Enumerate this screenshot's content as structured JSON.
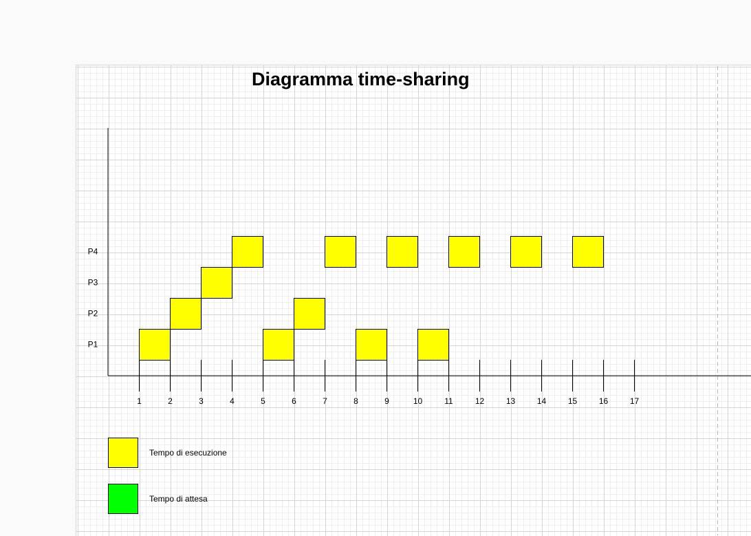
{
  "title": "Diagramma time-sharing",
  "processes": [
    "P1",
    "P2",
    "P3",
    "P4"
  ],
  "time_ticks": [
    "1",
    "2",
    "3",
    "4",
    "5",
    "6",
    "7",
    "8",
    "9",
    "10",
    "11",
    "12",
    "13",
    "14",
    "15",
    "16",
    "17"
  ],
  "execution_slots": [
    {
      "process": "P1",
      "start": 1,
      "end": 2
    },
    {
      "process": "P2",
      "start": 2,
      "end": 3
    },
    {
      "process": "P3",
      "start": 3,
      "end": 4
    },
    {
      "process": "P4",
      "start": 4,
      "end": 5
    },
    {
      "process": "P1",
      "start": 5,
      "end": 6
    },
    {
      "process": "P2",
      "start": 6,
      "end": 7
    },
    {
      "process": "P4",
      "start": 7,
      "end": 8
    },
    {
      "process": "P1",
      "start": 8,
      "end": 9
    },
    {
      "process": "P4",
      "start": 9,
      "end": 10
    },
    {
      "process": "P1",
      "start": 10,
      "end": 11
    },
    {
      "process": "P4",
      "start": 11,
      "end": 12
    },
    {
      "process": "P4",
      "start": 13,
      "end": 14
    },
    {
      "process": "P4",
      "start": 15,
      "end": 16
    }
  ],
  "legend": [
    {
      "label": "Tempo di esecuzione",
      "color": "#ffff00"
    },
    {
      "label": "Tempo di attesa",
      "color": "#00ff00"
    }
  ],
  "colors": {
    "execution": "#ffff00",
    "waiting": "#00ff00",
    "axis": "#000000"
  }
}
